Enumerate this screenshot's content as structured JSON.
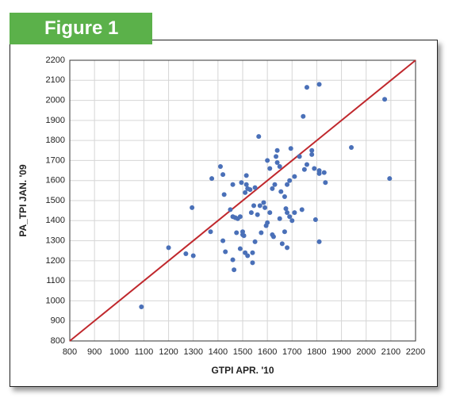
{
  "chart_data": {
    "type": "scatter",
    "badge": "Figure 1",
    "x_label": "GTPI APR. '10",
    "y_label": "PA_TPI JAN. '09",
    "xlim": [
      800,
      2200
    ],
    "ylim": [
      800,
      2200
    ],
    "xticks": [
      800,
      900,
      1000,
      1100,
      1200,
      1300,
      1400,
      1500,
      1600,
      1700,
      1800,
      1900,
      2000,
      2100,
      2200
    ],
    "yticks": [
      800,
      900,
      1000,
      1100,
      1200,
      1300,
      1400,
      1500,
      1600,
      1700,
      1800,
      1900,
      2000,
      2100,
      2200
    ],
    "grid": true,
    "diagonal": true,
    "diagonal_color": "#c0282d",
    "color": "#4a70b8",
    "x": [
      1090,
      1200,
      1270,
      1300,
      1295,
      1370,
      1375,
      1410,
      1420,
      1425,
      1420,
      1430,
      1450,
      1460,
      1460,
      1470,
      1460,
      1465,
      1475,
      1480,
      1490,
      1495,
      1490,
      1500,
      1500,
      1505,
      1510,
      1515,
      1515,
      1520,
      1510,
      1520,
      1530,
      1535,
      1540,
      1540,
      1545,
      1550,
      1550,
      1560,
      1565,
      1570,
      1575,
      1585,
      1590,
      1595,
      1600,
      1600,
      1610,
      1610,
      1620,
      1620,
      1625,
      1630,
      1635,
      1640,
      1640,
      1650,
      1650,
      1655,
      1660,
      1670,
      1670,
      1675,
      1680,
      1680,
      1680,
      1690,
      1690,
      1695,
      1700,
      1710,
      1710,
      1730,
      1740,
      1745,
      1750,
      1760,
      1760,
      1780,
      1780,
      1790,
      1795,
      1810,
      1810,
      1810,
      1810,
      1830,
      1835,
      1940,
      2075,
      2095
    ],
    "values": [
      970,
      1265,
      1235,
      1225,
      1465,
      1345,
      1610,
      1670,
      1630,
      1530,
      1300,
      1245,
      1455,
      1580,
      1420,
      1415,
      1205,
      1155,
      1340,
      1410,
      1420,
      1590,
      1260,
      1330,
      1345,
      1325,
      1540,
      1625,
      1580,
      1560,
      1240,
      1225,
      1555,
      1440,
      1190,
      1240,
      1475,
      1565,
      1295,
      1430,
      1820,
      1475,
      1340,
      1490,
      1465,
      1375,
      1390,
      1700,
      1440,
      1660,
      1560,
      1330,
      1320,
      1580,
      1720,
      1750,
      1690,
      1410,
      1670,
      1545,
      1285,
      1345,
      1520,
      1460,
      1440,
      1265,
      1580,
      1420,
      1600,
      1760,
      1400,
      1440,
      1620,
      1720,
      1455,
      1920,
      1655,
      2065,
      1680,
      1750,
      1730,
      1660,
      1405,
      1635,
      1295,
      1650,
      2080,
      1640,
      1590,
      1765,
      2005,
      1610
    ]
  }
}
